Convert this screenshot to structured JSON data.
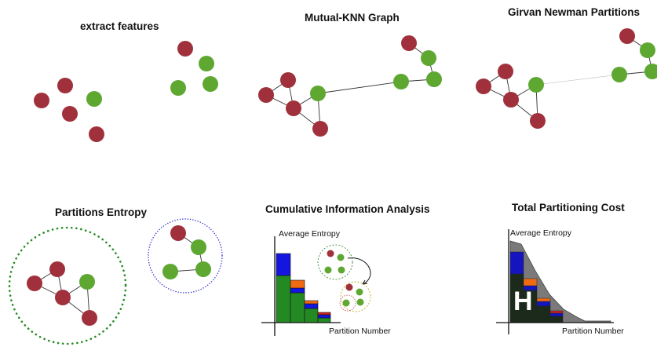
{
  "panels": {
    "extract": {
      "title": "extract features"
    },
    "knn": {
      "title": "Mutual-KNN Graph"
    },
    "girvan": {
      "title": "Girvan Newman Partitions"
    },
    "entropy": {
      "title": "Partitions Entropy"
    },
    "cumulative": {
      "title": "Cumulative Information Analysis",
      "ylabel": "Average Entropy",
      "xlabel": "Partition Number"
    },
    "cost": {
      "title": "Total  Partitioning Cost",
      "ylabel": "Average Entropy",
      "xlabel": "Partition Number",
      "symbol": "H"
    }
  },
  "colors": {
    "node_red": "#a0313c",
    "node_green": "#5ea832",
    "bar_green": "#238a23",
    "bar_blue": "#1515e0",
    "bar_orange": "#f06a14",
    "bar_red": "#d02020",
    "cost_fill": "#1c2a1c",
    "cost_area": "#7a7a7a"
  }
}
